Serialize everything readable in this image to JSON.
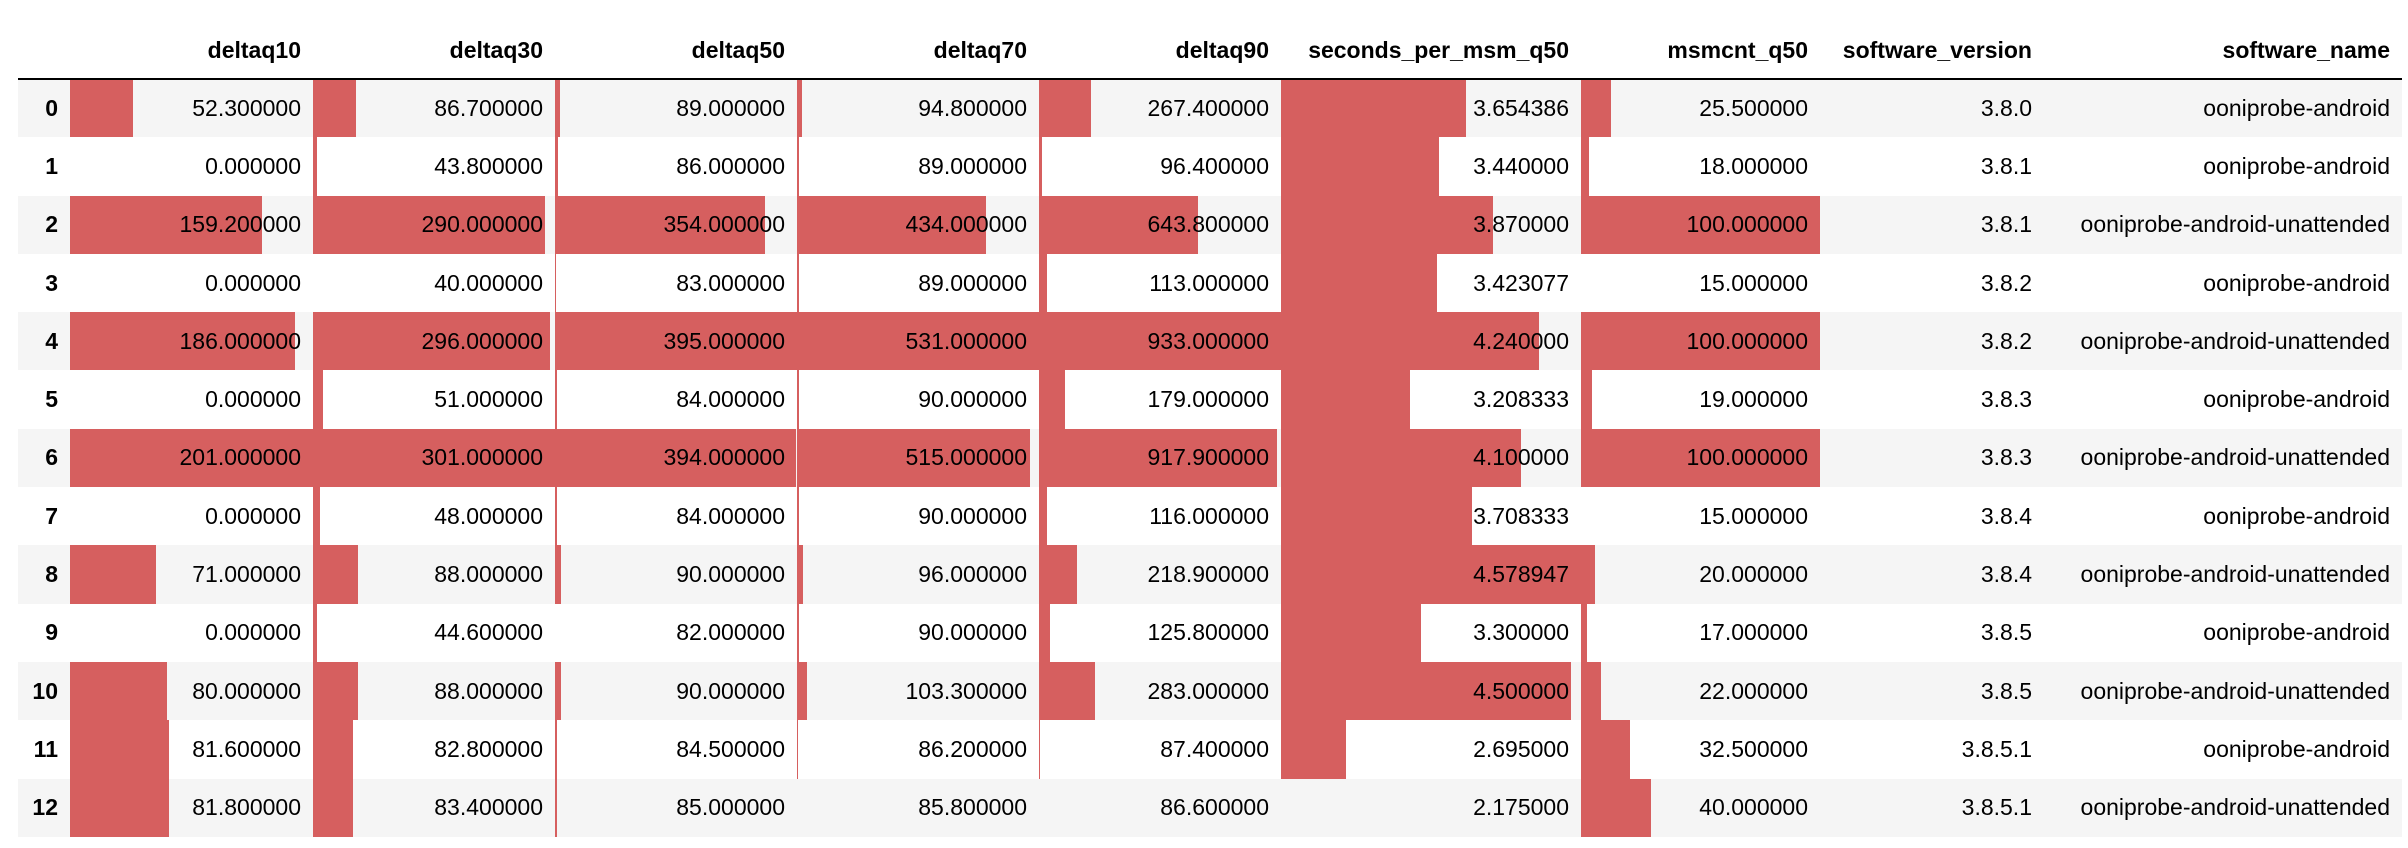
{
  "bar_color": "#d65f5f",
  "stripe_color": "#f5f5f5",
  "columns": [
    "",
    "deltaq10",
    "deltaq30",
    "deltaq50",
    "deltaq70",
    "deltaq90",
    "seconds_per_msm_q50",
    "msmcnt_q50",
    "software_version",
    "software_name"
  ],
  "bar_columns": [
    "deltaq10",
    "deltaq30",
    "deltaq50",
    "deltaq70",
    "deltaq90",
    "seconds_per_msm_q50",
    "msmcnt_q50"
  ],
  "rows": [
    {
      "index": "0",
      "deltaq10": "52.300000",
      "deltaq30": "86.700000",
      "deltaq50": "89.000000",
      "deltaq70": "94.800000",
      "deltaq90": "267.400000",
      "seconds_per_msm_q50": "3.654386",
      "msmcnt_q50": "25.500000",
      "software_version": "3.8.0",
      "software_name": "ooniprobe-android"
    },
    {
      "index": "1",
      "deltaq10": "0.000000",
      "deltaq30": "43.800000",
      "deltaq50": "86.000000",
      "deltaq70": "89.000000",
      "deltaq90": "96.400000",
      "seconds_per_msm_q50": "3.440000",
      "msmcnt_q50": "18.000000",
      "software_version": "3.8.1",
      "software_name": "ooniprobe-android"
    },
    {
      "index": "2",
      "deltaq10": "159.200000",
      "deltaq30": "290.000000",
      "deltaq50": "354.000000",
      "deltaq70": "434.000000",
      "deltaq90": "643.800000",
      "seconds_per_msm_q50": "3.870000",
      "msmcnt_q50": "100.000000",
      "software_version": "3.8.1",
      "software_name": "ooniprobe-android-unattended"
    },
    {
      "index": "3",
      "deltaq10": "0.000000",
      "deltaq30": "40.000000",
      "deltaq50": "83.000000",
      "deltaq70": "89.000000",
      "deltaq90": "113.000000",
      "seconds_per_msm_q50": "3.423077",
      "msmcnt_q50": "15.000000",
      "software_version": "3.8.2",
      "software_name": "ooniprobe-android"
    },
    {
      "index": "4",
      "deltaq10": "186.000000",
      "deltaq30": "296.000000",
      "deltaq50": "395.000000",
      "deltaq70": "531.000000",
      "deltaq90": "933.000000",
      "seconds_per_msm_q50": "4.240000",
      "msmcnt_q50": "100.000000",
      "software_version": "3.8.2",
      "software_name": "ooniprobe-android-unattended"
    },
    {
      "index": "5",
      "deltaq10": "0.000000",
      "deltaq30": "51.000000",
      "deltaq50": "84.000000",
      "deltaq70": "90.000000",
      "deltaq90": "179.000000",
      "seconds_per_msm_q50": "3.208333",
      "msmcnt_q50": "19.000000",
      "software_version": "3.8.3",
      "software_name": "ooniprobe-android"
    },
    {
      "index": "6",
      "deltaq10": "201.000000",
      "deltaq30": "301.000000",
      "deltaq50": "394.000000",
      "deltaq70": "515.000000",
      "deltaq90": "917.900000",
      "seconds_per_msm_q50": "4.100000",
      "msmcnt_q50": "100.000000",
      "software_version": "3.8.3",
      "software_name": "ooniprobe-android-unattended"
    },
    {
      "index": "7",
      "deltaq10": "0.000000",
      "deltaq30": "48.000000",
      "deltaq50": "84.000000",
      "deltaq70": "90.000000",
      "deltaq90": "116.000000",
      "seconds_per_msm_q50": "3.708333",
      "msmcnt_q50": "15.000000",
      "software_version": "3.8.4",
      "software_name": "ooniprobe-android"
    },
    {
      "index": "8",
      "deltaq10": "71.000000",
      "deltaq30": "88.000000",
      "deltaq50": "90.000000",
      "deltaq70": "96.000000",
      "deltaq90": "218.900000",
      "seconds_per_msm_q50": "4.578947",
      "msmcnt_q50": "20.000000",
      "software_version": "3.8.4",
      "software_name": "ooniprobe-android-unattended"
    },
    {
      "index": "9",
      "deltaq10": "0.000000",
      "deltaq30": "44.600000",
      "deltaq50": "82.000000",
      "deltaq70": "90.000000",
      "deltaq90": "125.800000",
      "seconds_per_msm_q50": "3.300000",
      "msmcnt_q50": "17.000000",
      "software_version": "3.8.5",
      "software_name": "ooniprobe-android"
    },
    {
      "index": "10",
      "deltaq10": "80.000000",
      "deltaq30": "88.000000",
      "deltaq50": "90.000000",
      "deltaq70": "103.300000",
      "deltaq90": "283.000000",
      "seconds_per_msm_q50": "4.500000",
      "msmcnt_q50": "22.000000",
      "software_version": "3.8.5",
      "software_name": "ooniprobe-android-unattended"
    },
    {
      "index": "11",
      "deltaq10": "81.600000",
      "deltaq30": "82.800000",
      "deltaq50": "84.500000",
      "deltaq70": "86.200000",
      "deltaq90": "87.400000",
      "seconds_per_msm_q50": "2.695000",
      "msmcnt_q50": "32.500000",
      "software_version": "3.8.5.1",
      "software_name": "ooniprobe-android"
    },
    {
      "index": "12",
      "deltaq10": "81.800000",
      "deltaq30": "83.400000",
      "deltaq50": "85.000000",
      "deltaq70": "85.800000",
      "deltaq90": "86.600000",
      "seconds_per_msm_q50": "2.175000",
      "msmcnt_q50": "40.000000",
      "software_version": "3.8.5.1",
      "software_name": "ooniprobe-android-unattended"
    }
  ]
}
